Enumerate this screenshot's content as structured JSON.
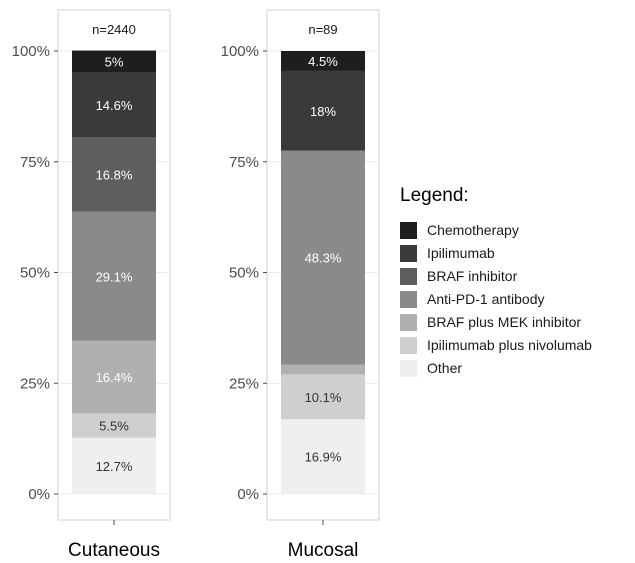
{
  "chart_data": {
    "type": "bar",
    "stacked": true,
    "categories": [
      "Cutaneous",
      "Mucosal"
    ],
    "panel_labels": [
      "n=2440",
      "n=89"
    ],
    "ylim": [
      0,
      100
    ],
    "y_ticks": [
      "0%",
      "25%",
      "50%",
      "75%",
      "100%"
    ],
    "legend_title": "Legend:",
    "legend_position": "right",
    "grid": true,
    "series": [
      {
        "name": "Other",
        "color": "#efefef",
        "label_color": "#333333",
        "values": [
          12.7,
          16.9
        ],
        "labels": [
          "12.7%",
          "16.9%"
        ]
      },
      {
        "name": "Ipilimumab plus nivolumab",
        "color": "#cfcfcf",
        "label_color": "#333333",
        "values": [
          5.5,
          10.1
        ],
        "labels": [
          "5.5%",
          "10.1%"
        ]
      },
      {
        "name": "BRAF plus MEK inhibitor",
        "color": "#b0b0b0",
        "label_color": "#ffffff",
        "values": [
          16.4,
          2.2
        ],
        "labels": [
          "16.4%",
          ""
        ]
      },
      {
        "name": "Anti-PD-1 antibody",
        "color": "#8a8a8a",
        "label_color": "#ffffff",
        "values": [
          29.1,
          48.3
        ],
        "labels": [
          "29.1%",
          "48.3%"
        ]
      },
      {
        "name": "BRAF inhibitor",
        "color": "#5e5e5e",
        "label_color": "#ffffff",
        "values": [
          16.8,
          0
        ],
        "labels": [
          "16.8%",
          ""
        ]
      },
      {
        "name": "Ipilimumab",
        "color": "#3a3a3a",
        "label_color": "#ffffff",
        "values": [
          14.6,
          18.0
        ],
        "labels": [
          "14.6%",
          "18%"
        ]
      },
      {
        "name": "Chemotherapy",
        "color": "#1e1e1e",
        "label_color": "#ffffff",
        "values": [
          5.0,
          4.5
        ],
        "labels": [
          "5%",
          "4.5%"
        ]
      }
    ],
    "legend_order": [
      "Chemotherapy",
      "Ipilimumab",
      "BRAF inhibitor",
      "Anti-PD-1 antibody",
      "BRAF plus MEK inhibitor",
      "Ipilimumab plus nivolumab",
      "Other"
    ]
  }
}
